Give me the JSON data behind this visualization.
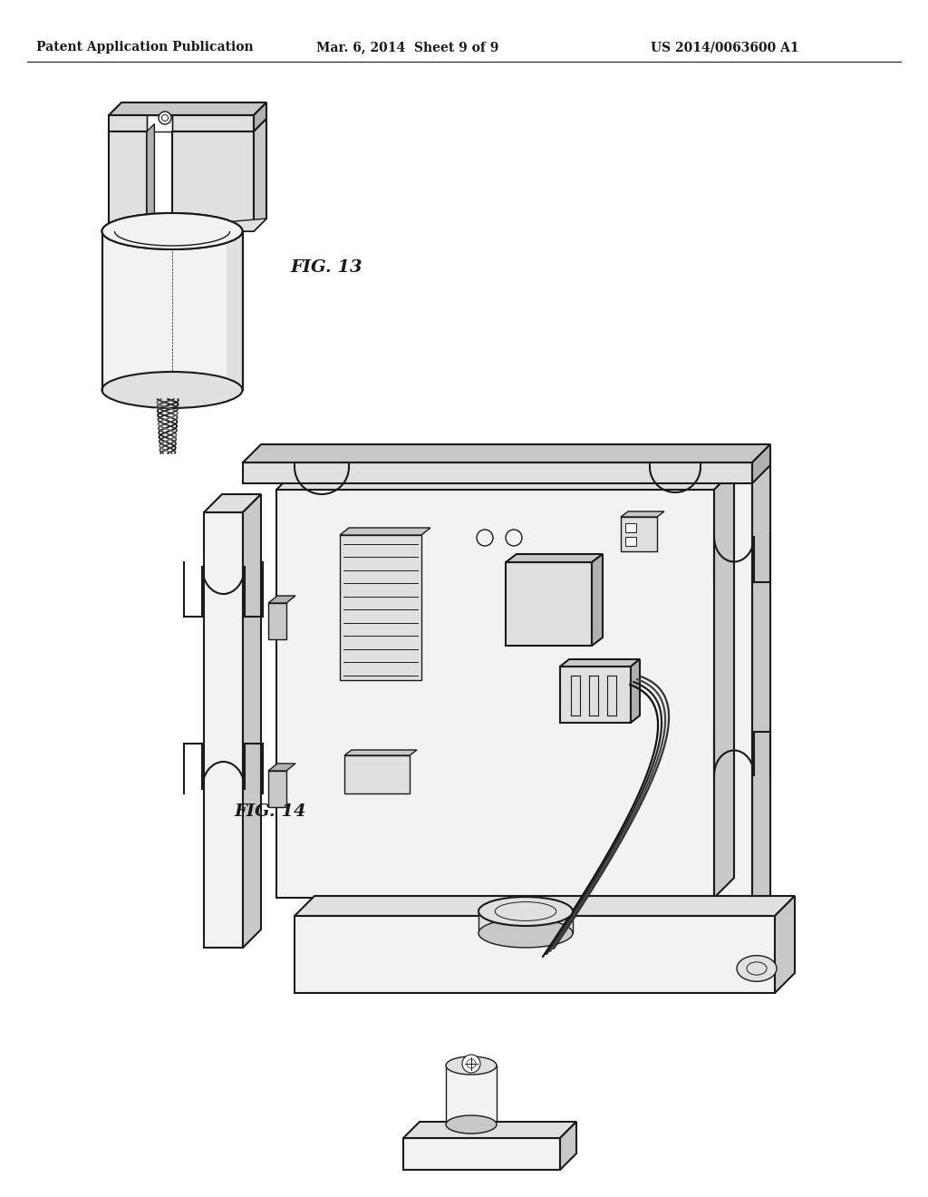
{
  "background_color": "#ffffff",
  "header_left": "Patent Application Publication",
  "header_center": "Mar. 6, 2014  Sheet 9 of 9",
  "header_right": "US 2014/0063600 A1",
  "fig13_label": "FIG. 13",
  "fig14_label": "FIG. 14",
  "header_fontsize": 10,
  "label_fontsize": 14,
  "line_color": "#1a1a1a",
  "face_light": "#f2f2f2",
  "face_mid": "#e0e0e0",
  "face_dark": "#c8c8c8",
  "face_darker": "#b0b0b0"
}
